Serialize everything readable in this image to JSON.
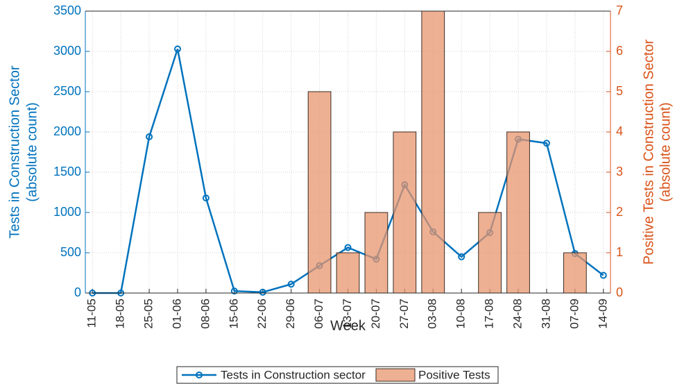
{
  "chart_data": {
    "type": "combo",
    "x_label": "Week",
    "y_label": [
      "Tests in Construction Sector",
      "(absolute count)"
    ],
    "y2_label": [
      "Positive Tests in Construction Sector",
      "(absolute count)"
    ],
    "categories": [
      "11-05",
      "18-05",
      "25-05",
      "01-06",
      "08-06",
      "15-06",
      "22-06",
      "29-06",
      "06-07",
      "13-07",
      "20-07",
      "27-07",
      "03-08",
      "10-08",
      "17-08",
      "24-08",
      "31-08",
      "07-09",
      "14-09"
    ],
    "series": [
      {
        "name": "Tests in Construction sector",
        "type": "line",
        "color": "#0072bd",
        "values": [
          0,
          0,
          1940,
          3030,
          1180,
          25,
          10,
          110,
          340,
          565,
          420,
          1345,
          760,
          450,
          750,
          1910,
          1860,
          490,
          220
        ]
      },
      {
        "name": "Positive Tests",
        "type": "bar",
        "axis": "y2",
        "color": "#e8956e",
        "values": [
          0,
          0,
          0,
          0,
          0,
          0,
          0,
          0,
          5,
          1,
          2,
          4,
          7,
          0,
          2,
          4,
          0,
          1,
          0
        ]
      }
    ],
    "ylim": [
      0,
      3500
    ],
    "yticks": [
      0,
      500,
      1000,
      1500,
      2000,
      2500,
      3000,
      3500
    ],
    "y2lim": [
      0,
      7
    ],
    "y2ticks": [
      0,
      1,
      2,
      3,
      4,
      5,
      6,
      7
    ],
    "y_color": "#0072bd",
    "y2_color": "#d95319",
    "grid": true,
    "legend": "bottom"
  }
}
